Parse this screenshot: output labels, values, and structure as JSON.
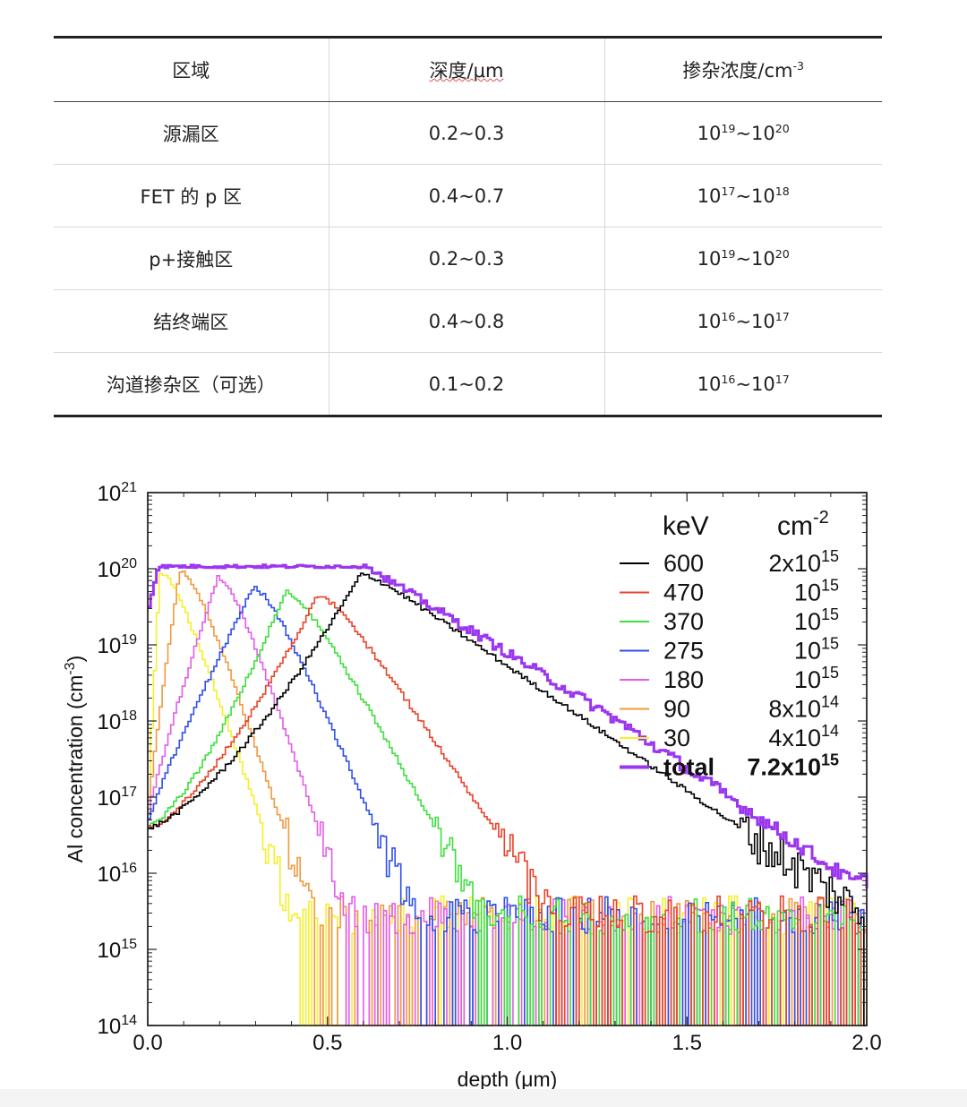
{
  "table": {
    "headers": [
      "区域",
      "深度/μm",
      "掺杂浓度/cm",
      "-3"
    ],
    "rows": [
      {
        "region": "源漏区",
        "depth": "0.2~0.3",
        "low_exp": "19",
        "high_exp": "20"
      },
      {
        "region": "FET 的 p 区",
        "depth": "0.4~0.7",
        "low_exp": "17",
        "high_exp": "18"
      },
      {
        "region": "p+接触区",
        "depth": "0.2~0.3",
        "low_exp": "19",
        "high_exp": "20"
      },
      {
        "region": "结终端区",
        "depth": "0.4~0.8",
        "low_exp": "16",
        "high_exp": "17"
      },
      {
        "region": "沟道掺杂区（可选）",
        "depth": "0.1~0.2",
        "low_exp": "16",
        "high_exp": "17"
      }
    ],
    "base": "10",
    "tilde": "~"
  },
  "chart_data": {
    "type": "line",
    "xlabel": "depth (μm)",
    "ylabel": "Al concentration (cm",
    "ylabel_sup": "-3",
    "ylabel_close": ")",
    "xlim": [
      0,
      2.0
    ],
    "ylim_log10": [
      14,
      21
    ],
    "x_ticks": [
      "0.0",
      "0.5",
      "1.0",
      "1.5",
      "2.0"
    ],
    "x_tick_values": [
      0,
      0.5,
      1.0,
      1.5,
      2.0
    ],
    "y_tick_base": "10",
    "y_tick_exponents": [
      "14",
      "15",
      "16",
      "17",
      "18",
      "19",
      "20",
      "21"
    ],
    "legend": {
      "col1_header": "keV",
      "col2_header": "cm",
      "col2_header_sup": "-2",
      "position": "top-right"
    },
    "series": [
      {
        "name": "600",
        "energy_keV": 600,
        "dose": "2x10",
        "dose_sup": "15",
        "color": "#000000",
        "peak_depth": 0.59,
        "peak_log10": 19.93
      },
      {
        "name": "470",
        "energy_keV": 470,
        "dose": "10",
        "dose_sup": "15",
        "color": "#e8432a",
        "peak_depth": 0.47,
        "peak_log10": 19.65
      },
      {
        "name": "370",
        "energy_keV": 370,
        "dose": "10",
        "dose_sup": "15",
        "color": "#3de03d",
        "peak_depth": 0.38,
        "peak_log10": 19.7
      },
      {
        "name": "275",
        "energy_keV": 275,
        "dose": "10",
        "dose_sup": "15",
        "color": "#2f4fe8",
        "peak_depth": 0.29,
        "peak_log10": 19.75
      },
      {
        "name": "180",
        "energy_keV": 180,
        "dose": "10",
        "dose_sup": "15",
        "color": "#e45ce8",
        "peak_depth": 0.19,
        "peak_log10": 19.88
      },
      {
        "name": "90",
        "energy_keV": 90,
        "dose": "8x10",
        "dose_sup": "14",
        "color": "#ef9a40",
        "peak_depth": 0.085,
        "peak_log10": 19.98
      },
      {
        "name": "30",
        "energy_keV": 30,
        "dose": "4x10",
        "dose_sup": "14",
        "color": "#f5ef2a",
        "peak_depth": 0.03,
        "peak_log10": 19.95
      },
      {
        "name": "total",
        "energy_keV": null,
        "dose": "7.2x10",
        "dose_sup": "15",
        "color": "#9b35f0",
        "plateau_log10": 20.03,
        "plateau_end_depth": 0.62
      }
    ]
  }
}
